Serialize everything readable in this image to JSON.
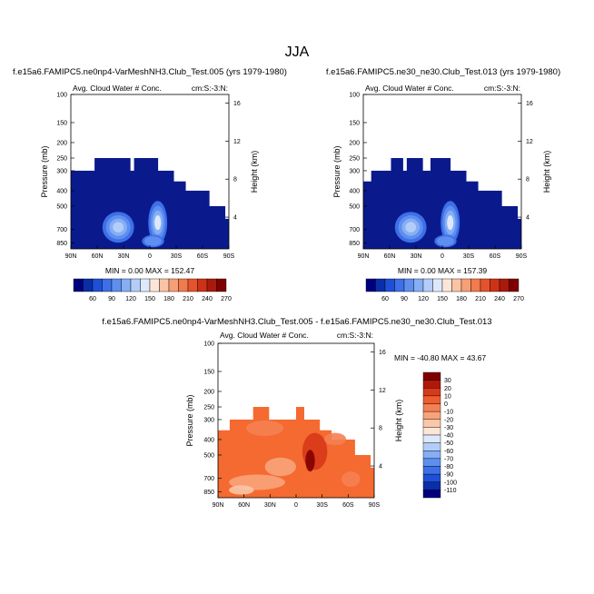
{
  "page_title": "JJA",
  "chart_data": [
    {
      "type": "heatmap",
      "title": "f.e15a6.FAMIPC5.ne0np4-VarMeshNH3.Club_Test.005 (yrs 1979-1980)",
      "subtitle_left": "Avg. Cloud Water # Conc.",
      "subtitle_right": "cm:S:-3:N:",
      "ylabel": "Pressure (mb)",
      "ylabel_right": "Height (km)",
      "x_ticks": [
        "90N",
        "60N",
        "30N",
        "0",
        "30S",
        "60S",
        "90S"
      ],
      "y_ticks": [
        "100",
        "150",
        "200",
        "250",
        "300",
        "400",
        "500",
        "700",
        "850"
      ],
      "y_right_ticks": [
        "16",
        "12",
        "8",
        "4"
      ],
      "min_max": "MIN =   0.00  MAX = 152.47",
      "colorbar_ticks": [
        "60",
        "90",
        "120",
        "150",
        "180",
        "210",
        "240",
        "270"
      ],
      "fill_top_pressure": [
        300,
        300,
        300,
        300,
        300,
        300,
        250,
        250,
        250,
        250,
        250,
        250,
        250,
        250,
        250,
        300,
        250,
        250,
        250,
        250,
        250,
        250,
        300,
        300,
        300,
        300,
        350,
        350,
        350,
        400,
        400,
        400,
        400,
        400,
        400,
        500,
        500,
        500,
        500,
        600
      ]
    },
    {
      "type": "heatmap",
      "title": "f.e15a6.FAMIPC5.ne30_ne30.Club_Test.013 (yrs 1979-1980)",
      "subtitle_left": "Avg. Cloud Water # Conc.",
      "subtitle_right": "cm:S:-3:N:",
      "ylabel": "Pressure (mb)",
      "ylabel_right": "Height (km)",
      "x_ticks": [
        "90N",
        "60N",
        "30N",
        "0",
        "30S",
        "60S",
        "90S"
      ],
      "y_ticks": [
        "100",
        "150",
        "200",
        "250",
        "300",
        "400",
        "500",
        "700",
        "850"
      ],
      "y_right_ticks": [
        "16",
        "12",
        "8",
        "4"
      ],
      "min_max": "MIN =   0.00  MAX = 157.39",
      "colorbar_ticks": [
        "60",
        "90",
        "120",
        "150",
        "180",
        "210",
        "240",
        "270"
      ],
      "fill_top_pressure": [
        350,
        350,
        300,
        300,
        300,
        300,
        300,
        250,
        250,
        250,
        300,
        250,
        250,
        250,
        250,
        300,
        300,
        250,
        250,
        250,
        250,
        250,
        300,
        300,
        300,
        300,
        350,
        350,
        350,
        400,
        400,
        400,
        400,
        400,
        400,
        500,
        500,
        500,
        500,
        600
      ]
    },
    {
      "type": "heatmap",
      "title": "f.e15a6.FAMIPC5.ne0np4-VarMeshNH3.Club_Test.005 - f.e15a6.FAMIPC5.ne30_ne30.Club_Test.013",
      "subtitle_left": "Avg. Cloud Water # Conc.",
      "subtitle_right": "cm:S:-3:N:",
      "ylabel": "Pressure (mb)",
      "ylabel_right": "Height (km)",
      "x_ticks": [
        "90N",
        "60N",
        "30N",
        "0",
        "30S",
        "60S",
        "90S"
      ],
      "y_ticks": [
        "100",
        "150",
        "200",
        "250",
        "300",
        "400",
        "500",
        "700",
        "850"
      ],
      "y_right_ticks": [
        "16",
        "12",
        "8",
        "4"
      ],
      "min_max": "MIN = -40.80  MAX =  43.67",
      "colorbar_ticks": [
        "30",
        "20",
        "10",
        "0",
        "-10",
        "-20",
        "-30",
        "-40",
        "-50",
        "-60",
        "-70",
        "-80",
        "-90",
        "-100",
        "-110"
      ],
      "fill_top_pressure": [
        350,
        350,
        350,
        300,
        300,
        300,
        300,
        300,
        300,
        250,
        250,
        250,
        250,
        300,
        300,
        300,
        300,
        300,
        300,
        300,
        250,
        250,
        300,
        300,
        300,
        300,
        350,
        350,
        350,
        400,
        400,
        400,
        400,
        400,
        400,
        500,
        500,
        500,
        500,
        600
      ]
    }
  ],
  "colors": {
    "top_colorbar": [
      "#00007f",
      "#0a2ea8",
      "#1f4fd6",
      "#3d6fe8",
      "#5e8ff0",
      "#85aef5",
      "#b3cdf8",
      "#dde8fb",
      "#fde6d8",
      "#fbc3a6",
      "#f79f77",
      "#f27a4c",
      "#e5532c",
      "#cd3216",
      "#aa1a0a",
      "#7f0000"
    ],
    "diff_colorbar": [
      "#7f0000",
      "#b0180a",
      "#d8391a",
      "#ee5c2f",
      "#f68052",
      "#f9a37b",
      "#fbc7a6",
      "#fde6d8",
      "#dde8fb",
      "#b3cdf8",
      "#85aef5",
      "#5e8ff0",
      "#3d6fe8",
      "#1f4fd6",
      "#0a2ea8",
      "#00007f"
    ],
    "field_base_top": "#0a1a8c",
    "field_base_diff": "#f46a30"
  }
}
